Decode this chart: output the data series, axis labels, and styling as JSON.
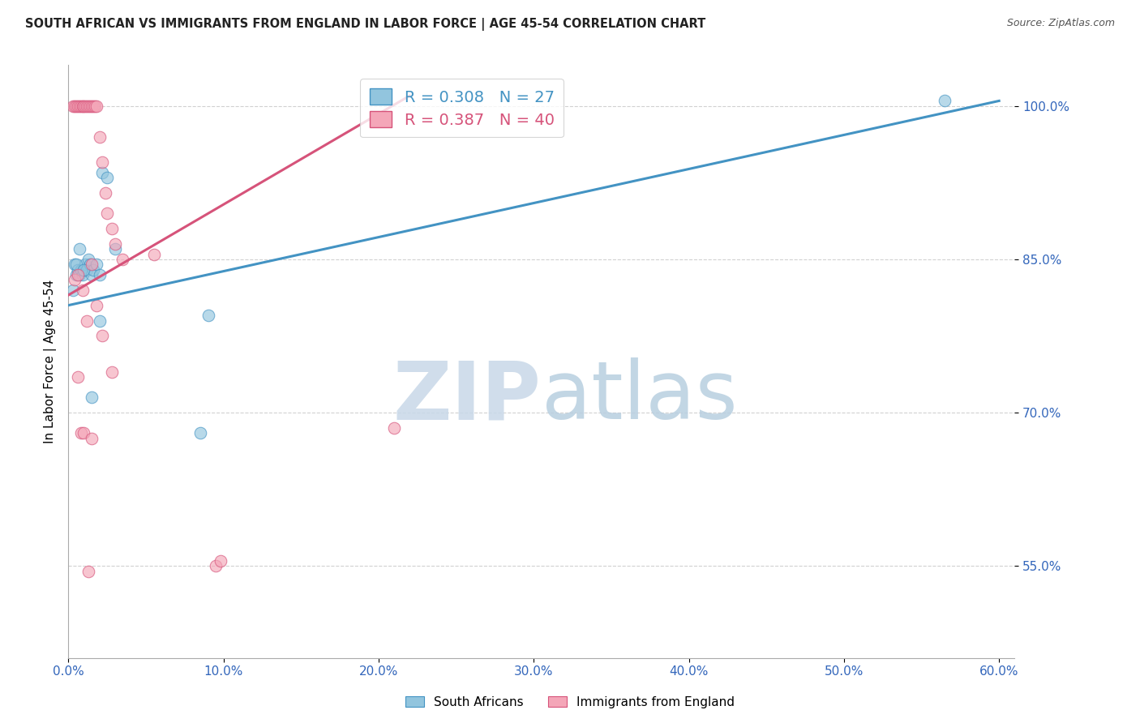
{
  "title": "SOUTH AFRICAN VS IMMIGRANTS FROM ENGLAND IN LABOR FORCE | AGE 45-54 CORRELATION CHART",
  "source": "Source: ZipAtlas.com",
  "ylabel_label": "In Labor Force | Age 45-54",
  "blue_color": "#92c5de",
  "pink_color": "#f4a6b8",
  "blue_line_color": "#4393c3",
  "pink_line_color": "#d6537a",
  "watermark_zip": "ZIP",
  "watermark_atlas": "atlas",
  "legend_r1": "R = 0.308",
  "legend_n1": "N = 27",
  "legend_r2": "R = 0.387",
  "legend_n2": "N = 40",
  "blue_scatter_x": [
    0.4,
    0.5,
    0.6,
    0.7,
    0.8,
    0.9,
    1.0,
    1.1,
    1.2,
    1.3,
    1.4,
    1.5,
    1.6,
    1.8,
    2.0,
    2.2,
    2.5,
    3.0,
    0.3,
    0.5,
    0.7,
    1.0,
    1.5,
    2.0,
    8.5,
    56.5,
    9.0
  ],
  "blue_scatter_y": [
    84.5,
    83.5,
    84.0,
    83.5,
    84.0,
    83.5,
    84.0,
    84.5,
    84.0,
    85.0,
    84.5,
    83.5,
    84.0,
    84.5,
    83.5,
    93.5,
    93.0,
    86.0,
    82.0,
    84.5,
    86.0,
    84.0,
    71.5,
    79.0,
    68.0,
    100.5,
    79.5
  ],
  "pink_scatter_x": [
    0.3,
    0.4,
    0.5,
    0.6,
    0.7,
    0.8,
    0.9,
    1.0,
    1.1,
    1.2,
    1.3,
    1.4,
    1.5,
    1.6,
    1.7,
    1.8,
    2.0,
    2.2,
    2.4,
    2.5,
    2.8,
    3.0,
    3.5,
    5.5,
    0.4,
    0.6,
    0.9,
    1.2,
    1.5,
    1.8,
    2.2,
    2.8,
    0.6,
    0.8,
    1.0,
    1.3,
    1.5,
    9.5,
    9.8,
    21.0
  ],
  "pink_scatter_y": [
    100.0,
    100.0,
    100.0,
    100.0,
    100.0,
    100.0,
    100.0,
    100.0,
    100.0,
    100.0,
    100.0,
    100.0,
    100.0,
    100.0,
    100.0,
    100.0,
    97.0,
    94.5,
    91.5,
    89.5,
    88.0,
    86.5,
    85.0,
    85.5,
    83.0,
    83.5,
    82.0,
    79.0,
    84.5,
    80.5,
    77.5,
    74.0,
    73.5,
    68.0,
    68.0,
    54.5,
    67.5,
    55.0,
    55.5,
    68.5
  ],
  "blue_trend_x": [
    0,
    60
  ],
  "blue_trend_y": [
    80.5,
    100.5
  ],
  "pink_trend_x": [
    0,
    22
  ],
  "pink_trend_y": [
    81.5,
    101.0
  ],
  "xlim": [
    0,
    61
  ],
  "ylim": [
    46,
    104
  ],
  "yticks": [
    55.0,
    70.0,
    85.0,
    100.0
  ],
  "xticks": [
    0,
    10,
    20,
    30,
    40,
    50,
    60
  ]
}
